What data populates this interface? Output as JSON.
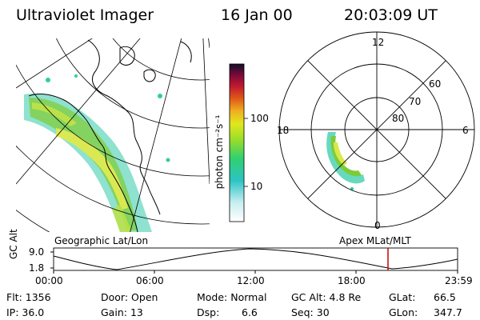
{
  "header": {
    "title": "Ultraviolet Imager",
    "date": "16 Jan 00",
    "time": "20:03:09 UT"
  },
  "maps": {
    "geo_label": "Geographic Lat/Lon",
    "apex_label": "Apex  MLat/MLT"
  },
  "colorbar": {
    "unit_label": "photon cm⁻²s⁻¹",
    "tick_labels": [
      "100",
      "10"
    ]
  },
  "polar": {
    "mlt_labels": {
      "top": "12",
      "left": "18",
      "right": "6",
      "bottom": "0"
    },
    "mlat_labels": [
      "60",
      "70",
      "80"
    ]
  },
  "altitude_plot": {
    "ylabel": "GC Alt",
    "y_ticks": [
      "9.0",
      "1.8"
    ],
    "x_ticks": [
      "00:00",
      "06:00",
      "12:00",
      "18:00",
      "23:59"
    ],
    "current_time_marker_color": "#cc0000"
  },
  "status": {
    "row1": [
      {
        "label": "Flt:",
        "value": "1356"
      },
      {
        "label": "Door:",
        "value": "Open"
      },
      {
        "label": "Mode:",
        "value": "Normal"
      },
      {
        "label": "GC Alt:",
        "value": "4.8 Re"
      },
      {
        "label": "GLat:",
        "value": "66.5"
      }
    ],
    "row2": [
      {
        "label": "IP:",
        "value": "36.0"
      },
      {
        "label": "Gain:",
        "value": "13"
      },
      {
        "label": "Dsp:",
        "value": "6.6"
      },
      {
        "label": "Seq:",
        "value": "30"
      },
      {
        "label": "GLon:",
        "value": "347.7"
      }
    ]
  },
  "colors": {
    "aurora_low": "#27c9a2",
    "aurora_mid": "#7ccc3a",
    "aurora_high": "#d9e84a",
    "outline": "#000000"
  }
}
